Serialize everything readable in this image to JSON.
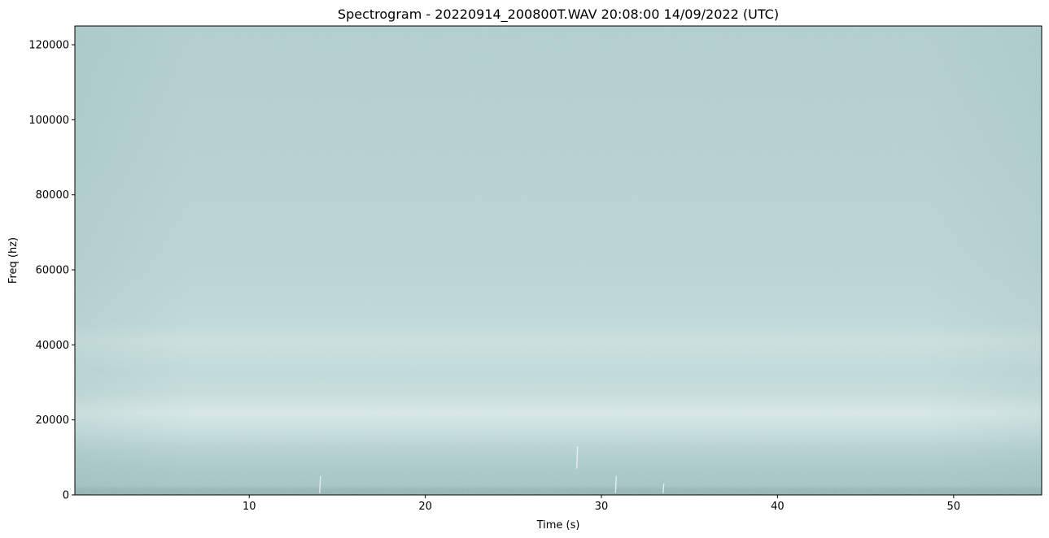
{
  "chart_data": {
    "type": "heatmap",
    "title": "Spectrogram - 20220914_200800T.WAV 20:08:00 14/09/2022 (UTC)",
    "xlabel": "Time (s)",
    "ylabel": "Freq (hz)",
    "xlim": [
      0.1,
      55
    ],
    "ylim": [
      0,
      125000
    ],
    "x_ticks": [
      10,
      20,
      30,
      40,
      50
    ],
    "x_tick_labels": [
      "10",
      "20",
      "30",
      "40",
      "50"
    ],
    "y_ticks": [
      0,
      20000,
      40000,
      60000,
      80000,
      100000,
      120000
    ],
    "y_tick_labels": [
      "0",
      "20000",
      "40000",
      "60000",
      "80000",
      "100000",
      "120000"
    ],
    "grid": false,
    "legend": "none",
    "colors": {
      "background": "#bdd7d7",
      "band_light": "#d9e9e8",
      "band_low": "#a9c8c8",
      "band_floor": "#95b3b4"
    },
    "frequency_profile": [
      {
        "freq": 0,
        "level": 0.0
      },
      {
        "freq": 1500,
        "level": 0.05
      },
      {
        "freq": 2500,
        "level": 0.25
      },
      {
        "freq": 6000,
        "level": 0.3
      },
      {
        "freq": 12000,
        "level": 0.45
      },
      {
        "freq": 17000,
        "level": 0.75
      },
      {
        "freq": 22000,
        "level": 1.0
      },
      {
        "freq": 27000,
        "level": 0.72
      },
      {
        "freq": 33000,
        "level": 0.62
      },
      {
        "freq": 41000,
        "level": 0.8
      },
      {
        "freq": 46000,
        "level": 0.6
      },
      {
        "freq": 60000,
        "level": 0.52
      },
      {
        "freq": 90000,
        "level": 0.45
      },
      {
        "freq": 125000,
        "level": 0.4
      }
    ],
    "transients": [
      {
        "time": 28.6,
        "freq_low": 7000,
        "freq_high": 13000
      },
      {
        "time": 14.0,
        "freq_low": 500,
        "freq_high": 5000
      },
      {
        "time": 30.8,
        "freq_low": 500,
        "freq_high": 5000
      },
      {
        "time": 33.5,
        "freq_low": 500,
        "freq_high": 3000
      }
    ]
  }
}
